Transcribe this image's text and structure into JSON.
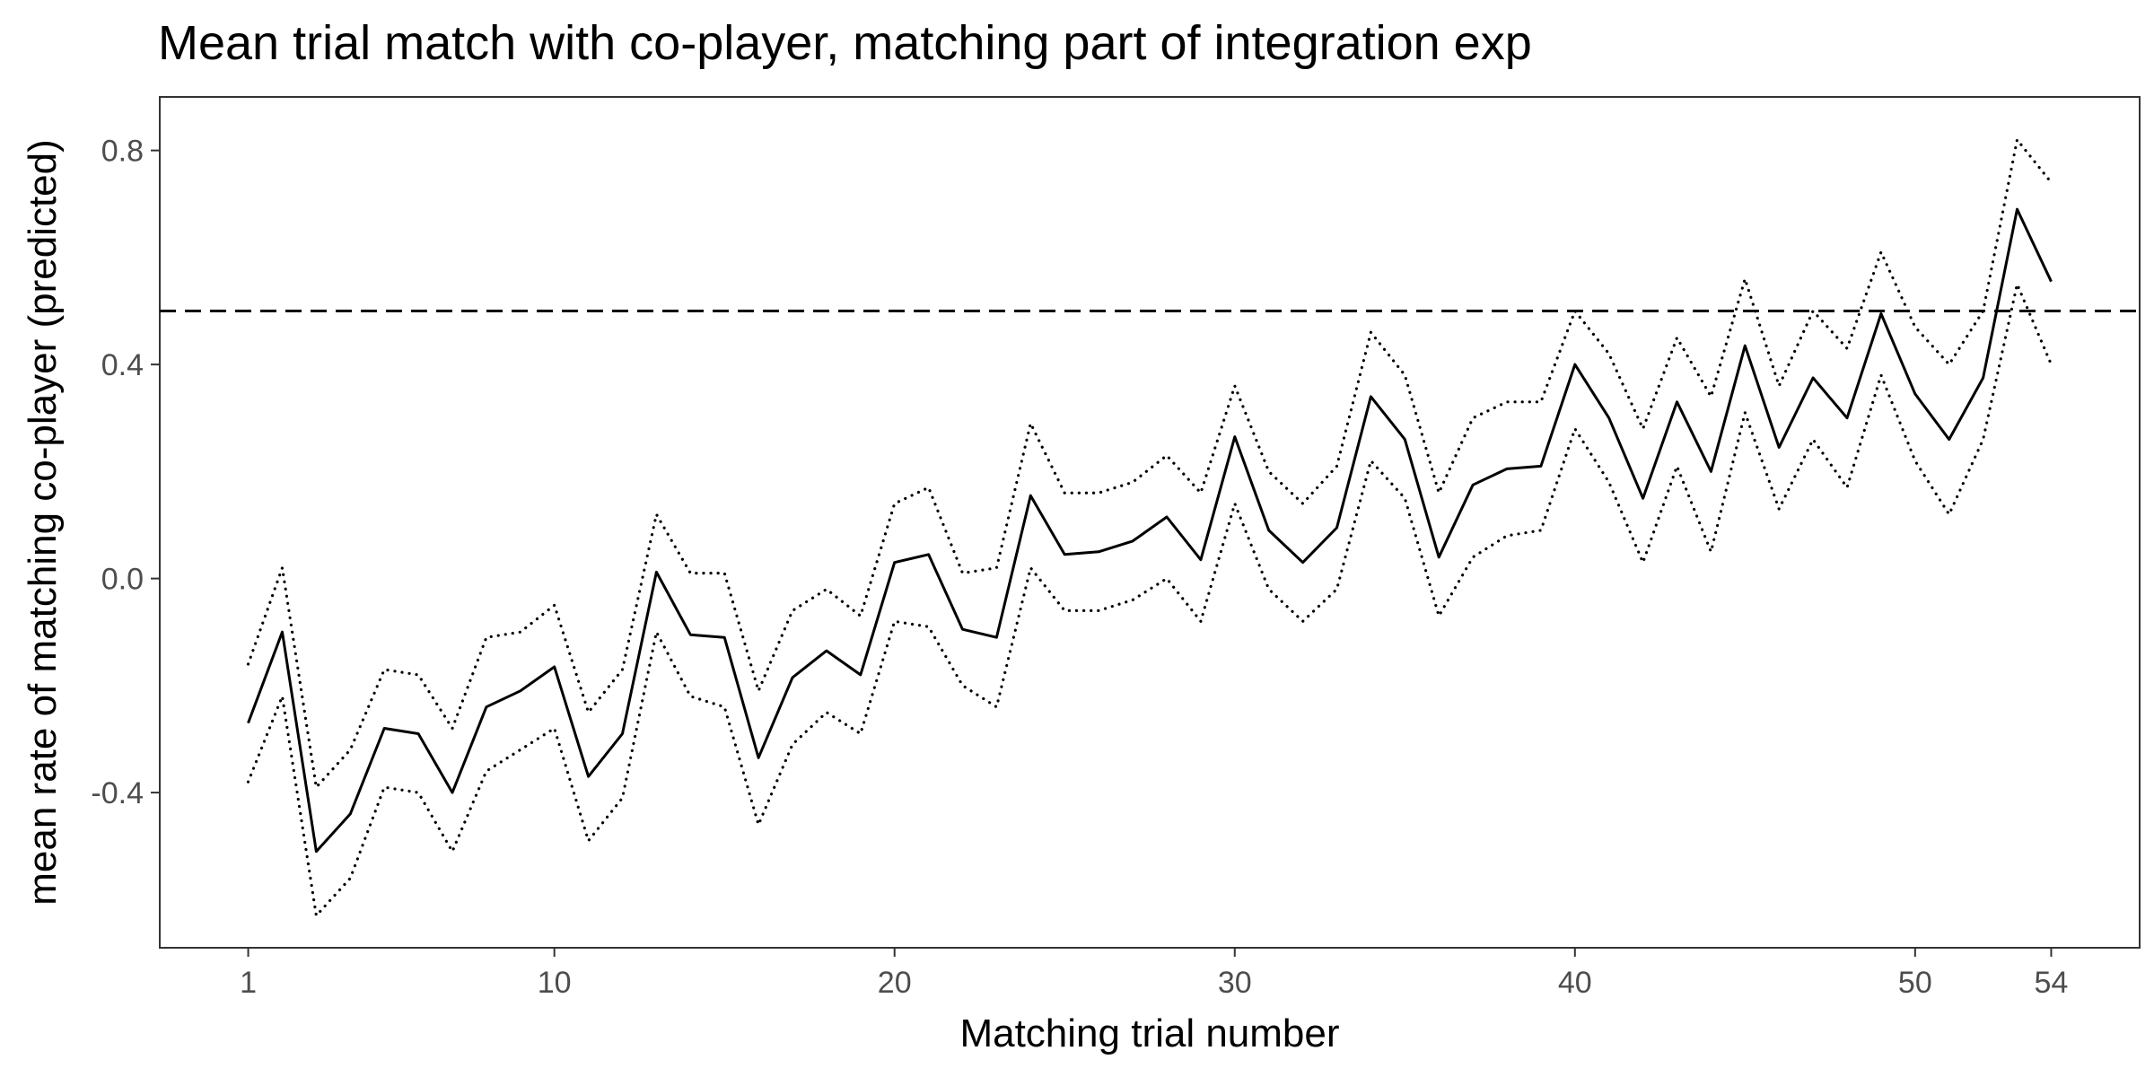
{
  "chart_data": {
    "type": "line",
    "title": "Mean trial match with co-player, matching part of integration exp",
    "xlabel": "Matching trial number",
    "ylabel": "mean rate of matching co-player (predicted)",
    "xlim": [
      -1.6,
      56.6
    ],
    "ylim": [
      -0.69,
      0.9
    ],
    "x_ticks": [
      1,
      10,
      20,
      30,
      40,
      50,
      54
    ],
    "y_ticks": [
      0.8,
      0.4,
      0.0,
      -0.4
    ],
    "y_tick_labels": [
      "0.8",
      "0.4",
      "0.0",
      "-0.4"
    ],
    "grid": false,
    "legend": "none",
    "reference_line": {
      "y": 0.5,
      "style": "dashed"
    },
    "x": [
      1,
      2,
      3,
      4,
      5,
      6,
      7,
      8,
      9,
      10,
      11,
      12,
      13,
      14,
      15,
      16,
      17,
      18,
      19,
      20,
      21,
      22,
      23,
      24,
      25,
      26,
      27,
      28,
      29,
      30,
      31,
      32,
      33,
      34,
      35,
      36,
      37,
      38,
      39,
      40,
      41,
      42,
      43,
      44,
      45,
      46,
      47,
      48,
      49,
      50,
      51,
      52,
      53,
      54
    ],
    "series": [
      {
        "role": "mean",
        "style": "solid",
        "values": [
          -0.27,
          -0.1,
          -0.51,
          -0.44,
          -0.28,
          -0.29,
          -0.4,
          -0.24,
          -0.21,
          -0.165,
          -0.37,
          -0.29,
          0.012,
          -0.105,
          -0.11,
          -0.335,
          -0.185,
          -0.135,
          -0.18,
          0.03,
          0.045,
          -0.095,
          -0.11,
          0.155,
          0.045,
          0.05,
          0.07,
          0.115,
          0.035,
          0.265,
          0.09,
          0.03,
          0.095,
          0.34,
          0.26,
          0.04,
          0.175,
          0.205,
          0.21,
          0.4,
          0.3,
          0.15,
          0.33,
          0.2,
          0.435,
          0.245,
          0.375,
          0.3,
          0.495,
          0.345,
          0.26,
          0.375,
          0.69,
          0.555
        ]
      },
      {
        "role": "upper",
        "style": "dotted",
        "values": [
          -0.16,
          0.02,
          -0.39,
          -0.32,
          -0.17,
          -0.18,
          -0.28,
          -0.11,
          -0.1,
          -0.05,
          -0.25,
          -0.17,
          0.12,
          0.01,
          0.01,
          -0.21,
          -0.06,
          -0.02,
          -0.07,
          0.14,
          0.17,
          0.01,
          0.02,
          0.29,
          0.16,
          0.16,
          0.18,
          0.23,
          0.16,
          0.36,
          0.2,
          0.14,
          0.21,
          0.46,
          0.38,
          0.16,
          0.3,
          0.33,
          0.33,
          0.5,
          0.42,
          0.28,
          0.45,
          0.34,
          0.56,
          0.36,
          0.5,
          0.43,
          0.61,
          0.47,
          0.4,
          0.5,
          0.82,
          0.74
        ]
      },
      {
        "role": "lower",
        "style": "dotted",
        "values": [
          -0.38,
          -0.22,
          -0.63,
          -0.56,
          -0.39,
          -0.4,
          -0.51,
          -0.36,
          -0.32,
          -0.28,
          -0.49,
          -0.41,
          -0.1,
          -0.22,
          -0.24,
          -0.46,
          -0.31,
          -0.25,
          -0.29,
          -0.08,
          -0.09,
          -0.2,
          -0.24,
          0.02,
          -0.06,
          -0.06,
          -0.04,
          0.0,
          -0.08,
          0.14,
          -0.02,
          -0.08,
          -0.02,
          0.22,
          0.15,
          -0.07,
          0.04,
          0.08,
          0.09,
          0.28,
          0.18,
          0.03,
          0.21,
          0.05,
          0.31,
          0.13,
          0.26,
          0.17,
          0.38,
          0.22,
          0.12,
          0.26,
          0.55,
          0.4
        ]
      }
    ]
  }
}
